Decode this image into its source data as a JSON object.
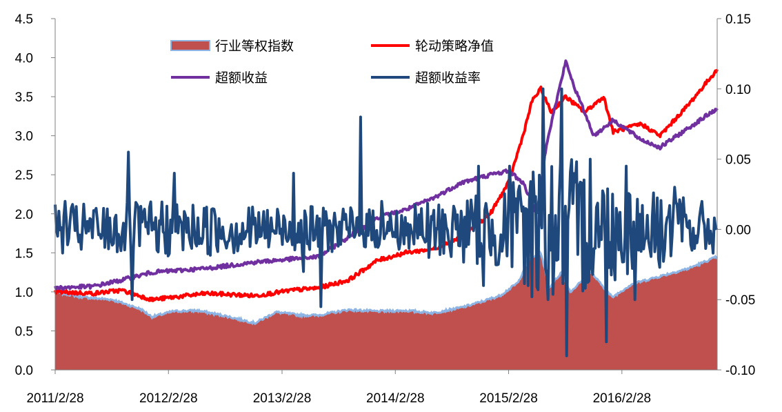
{
  "chart_data": {
    "type": "line",
    "title": "",
    "xlabel": "",
    "ylabel": "",
    "x_ticks": [
      "2011/2/28",
      "2012/2/28",
      "2013/2/28",
      "2014/2/28",
      "2015/2/28",
      "2016/2/28"
    ],
    "y_left_ticks": [
      "0.0",
      "0.5",
      "1.0",
      "1.5",
      "2.0",
      "2.5",
      "3.0",
      "3.5",
      "4.0",
      "4.5"
    ],
    "y_right_ticks": [
      "-0.10",
      "-0.05",
      "0.00",
      "0.05",
      "0.10",
      "0.15"
    ],
    "ylim_left": [
      0,
      4.5
    ],
    "ylim_right": [
      -0.1,
      0.15
    ],
    "xlim": [
      "2011/2/28",
      "2016/12/31"
    ],
    "legend_position": "top",
    "grid": false,
    "series": [
      {
        "name": "行业等权指数",
        "type": "area",
        "axis": "left",
        "color": "#C0504D",
        "edge_color": "#8EB4E3",
        "points": [
          [
            "2011/2/28",
            1.0
          ],
          [
            "2011/5/31",
            0.93
          ],
          [
            "2011/8/31",
            0.9
          ],
          [
            "2011/11/30",
            0.78
          ],
          [
            "2012/1/6",
            0.68
          ],
          [
            "2012/3/15",
            0.75
          ],
          [
            "2012/5/31",
            0.76
          ],
          [
            "2012/8/31",
            0.69
          ],
          [
            "2012/12/3",
            0.6
          ],
          [
            "2013/2/8",
            0.74
          ],
          [
            "2013/4/30",
            0.7
          ],
          [
            "2013/6/25",
            0.7
          ],
          [
            "2013/9/30",
            0.77
          ],
          [
            "2013/12/31",
            0.75
          ],
          [
            "2014/3/31",
            0.76
          ],
          [
            "2014/6/30",
            0.73
          ],
          [
            "2014/9/30",
            0.8
          ],
          [
            "2014/11/30",
            0.87
          ],
          [
            "2015/1/31",
            0.95
          ],
          [
            "2015/3/31",
            1.12
          ],
          [
            "2015/4/30",
            1.4
          ],
          [
            "2015/6/12",
            1.5
          ],
          [
            "2015/7/8",
            1.05
          ],
          [
            "2015/8/17",
            1.25
          ],
          [
            "2015/9/15",
            1.0
          ],
          [
            "2015/11/20",
            1.25
          ],
          [
            "2016/1/28",
            0.93
          ],
          [
            "2016/3/31",
            1.1
          ],
          [
            "2016/6/30",
            1.2
          ],
          [
            "2016/9/30",
            1.3
          ],
          [
            "2016/12/31",
            1.45
          ]
        ]
      },
      {
        "name": "轮动策略净值",
        "type": "line",
        "axis": "left",
        "color": "#FF0000",
        "points": [
          [
            "2011/2/28",
            1.0
          ],
          [
            "2011/6/30",
            0.98
          ],
          [
            "2011/9/30",
            1.02
          ],
          [
            "2012/1/6",
            0.9
          ],
          [
            "2012/6/30",
            0.98
          ],
          [
            "2012/12/3",
            0.95
          ],
          [
            "2013/3/31",
            1.02
          ],
          [
            "2013/6/25",
            1.05
          ],
          [
            "2013/9/30",
            1.15
          ],
          [
            "2013/12/31",
            1.4
          ],
          [
            "2014/3/31",
            1.5
          ],
          [
            "2014/6/30",
            1.55
          ],
          [
            "2014/9/30",
            1.7
          ],
          [
            "2014/12/31",
            2.0
          ],
          [
            "2015/2/28",
            2.4
          ],
          [
            "2015/4/15",
            3.0
          ],
          [
            "2015/5/15",
            3.45
          ],
          [
            "2015/6/12",
            3.6
          ],
          [
            "2015/7/15",
            3.3
          ],
          [
            "2015/8/31",
            3.5
          ],
          [
            "2015/10/31",
            3.3
          ],
          [
            "2015/12/31",
            3.5
          ],
          [
            "2016/1/31",
            3.05
          ],
          [
            "2016/4/30",
            3.15
          ],
          [
            "2016/6/30",
            3.0
          ],
          [
            "2016/9/30",
            3.4
          ],
          [
            "2016/12/31",
            3.85
          ]
        ]
      },
      {
        "name": "超额收益",
        "type": "line",
        "axis": "left",
        "color": "#7030A0",
        "points": [
          [
            "2011/2/28",
            1.05
          ],
          [
            "2011/6/30",
            1.07
          ],
          [
            "2011/9/30",
            1.15
          ],
          [
            "2012/1/6",
            1.25
          ],
          [
            "2012/6/30",
            1.3
          ],
          [
            "2012/12/3",
            1.38
          ],
          [
            "2013/6/25",
            1.45
          ],
          [
            "2013/9/30",
            1.7
          ],
          [
            "2013/12/31",
            1.95
          ],
          [
            "2014/3/31",
            2.05
          ],
          [
            "2014/6/30",
            2.2
          ],
          [
            "2014/9/30",
            2.4
          ],
          [
            "2014/12/31",
            2.5
          ],
          [
            "2015/2/28",
            2.55
          ],
          [
            "2015/4/15",
            2.4
          ],
          [
            "2015/5/31",
            2.0
          ],
          [
            "2015/6/30",
            2.9
          ],
          [
            "2015/8/31",
            3.95
          ],
          [
            "2015/9/30",
            3.6
          ],
          [
            "2015/11/30",
            3.0
          ],
          [
            "2016/1/31",
            3.2
          ],
          [
            "2016/4/30",
            2.95
          ],
          [
            "2016/6/30",
            2.85
          ],
          [
            "2016/9/30",
            3.1
          ],
          [
            "2016/12/31",
            3.35
          ]
        ]
      },
      {
        "name": "超额收益率",
        "type": "line",
        "axis": "right",
        "color": "#1F497D",
        "baseline": 0.0,
        "amplitude_by_year": [
          [
            "2011/2/28",
            0.018
          ],
          [
            "2012/2/28",
            0.02
          ],
          [
            "2013/2/28",
            0.017
          ],
          [
            "2014/2/28",
            0.015
          ],
          [
            "2015/2/28",
            0.03
          ],
          [
            "2015/6/30",
            0.06
          ],
          [
            "2016/2/28",
            0.035
          ],
          [
            "2016/12/31",
            0.018
          ]
        ],
        "spikes": [
          [
            "2011/4/1",
            0.02
          ],
          [
            "2011/10/24",
            0.055
          ],
          [
            "2011/11/2",
            -0.05
          ],
          [
            "2012/3/20",
            0.04
          ],
          [
            "2013/4/8",
            0.04
          ],
          [
            "2013/5/10",
            -0.03
          ],
          [
            "2013/7/5",
            -0.055
          ],
          [
            "2013/11/10",
            0.08
          ],
          [
            "2014/1/15",
            0.02
          ],
          [
            "2014/6/15",
            -0.02
          ],
          [
            "2014/11/25",
            0.045
          ],
          [
            "2014/12/10",
            -0.04
          ],
          [
            "2015/3/5",
            0.045
          ],
          [
            "2015/6/20",
            0.1
          ],
          [
            "2015/7/5",
            -0.05
          ],
          [
            "2015/8/20",
            0.1
          ],
          [
            "2015/9/2",
            -0.09
          ],
          [
            "2015/11/20",
            0.05
          ],
          [
            "2016/1/10",
            -0.08
          ],
          [
            "2016/3/15",
            0.045
          ],
          [
            "2016/4/12",
            -0.05
          ],
          [
            "2016/8/15",
            0.03
          ],
          [
            "2016/11/10",
            0.015
          ]
        ]
      }
    ]
  }
}
